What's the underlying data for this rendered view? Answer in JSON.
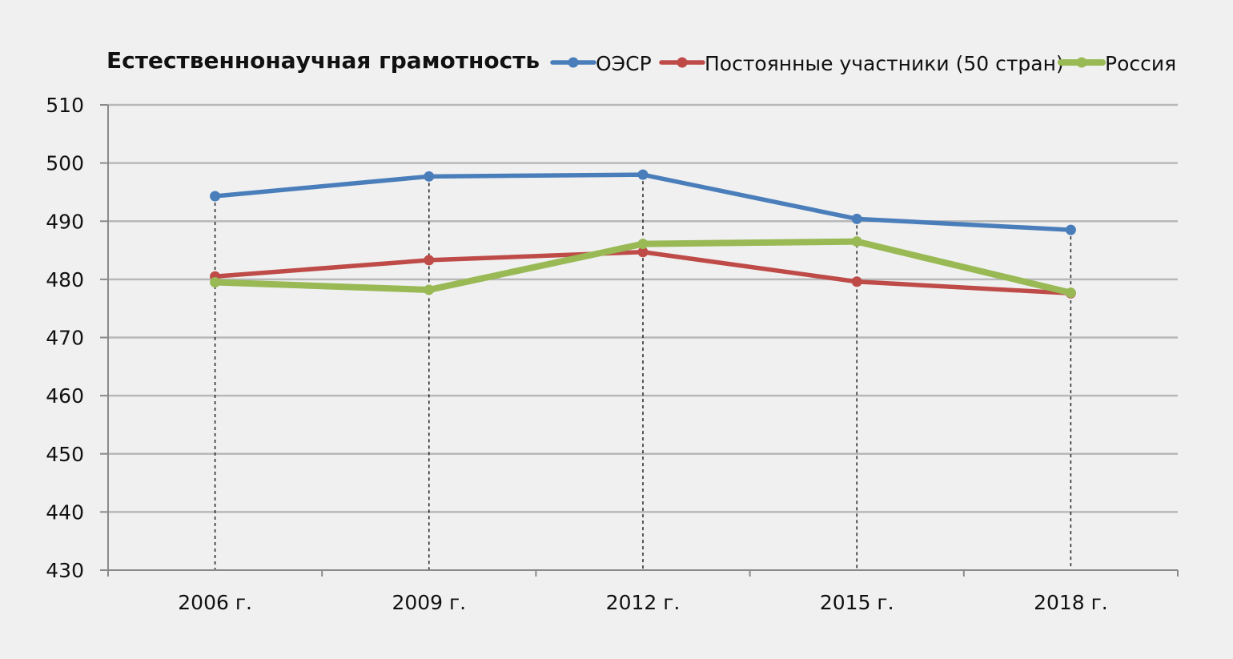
{
  "chart_data": {
    "type": "line",
    "title": "Естественнонаучная грамотность",
    "xlabel": "",
    "ylabel": "",
    "categories": [
      "2006 г.",
      "2009 г.",
      "2012 г.",
      "2015 г.",
      "2018 г."
    ],
    "ylim": [
      430,
      510
    ],
    "yticks": [
      "430",
      "440",
      "450",
      "460",
      "470",
      "480",
      "490",
      "500",
      "510"
    ],
    "grid": "horizontal",
    "legend_position": "top-right",
    "series": [
      {
        "name": "ОЭСР",
        "color": "#4a7ebb",
        "values": [
          494.3,
          497.7,
          498.0,
          490.4,
          488.5
        ]
      },
      {
        "name": "Постоянные участники (50 стран)",
        "color": "#be4b48",
        "values": [
          480.5,
          483.3,
          484.7,
          479.6,
          477.6
        ]
      },
      {
        "name": "Россия",
        "color": "#98b954",
        "values": [
          479.5,
          478.2,
          486.1,
          486.5,
          477.7
        ]
      }
    ]
  }
}
